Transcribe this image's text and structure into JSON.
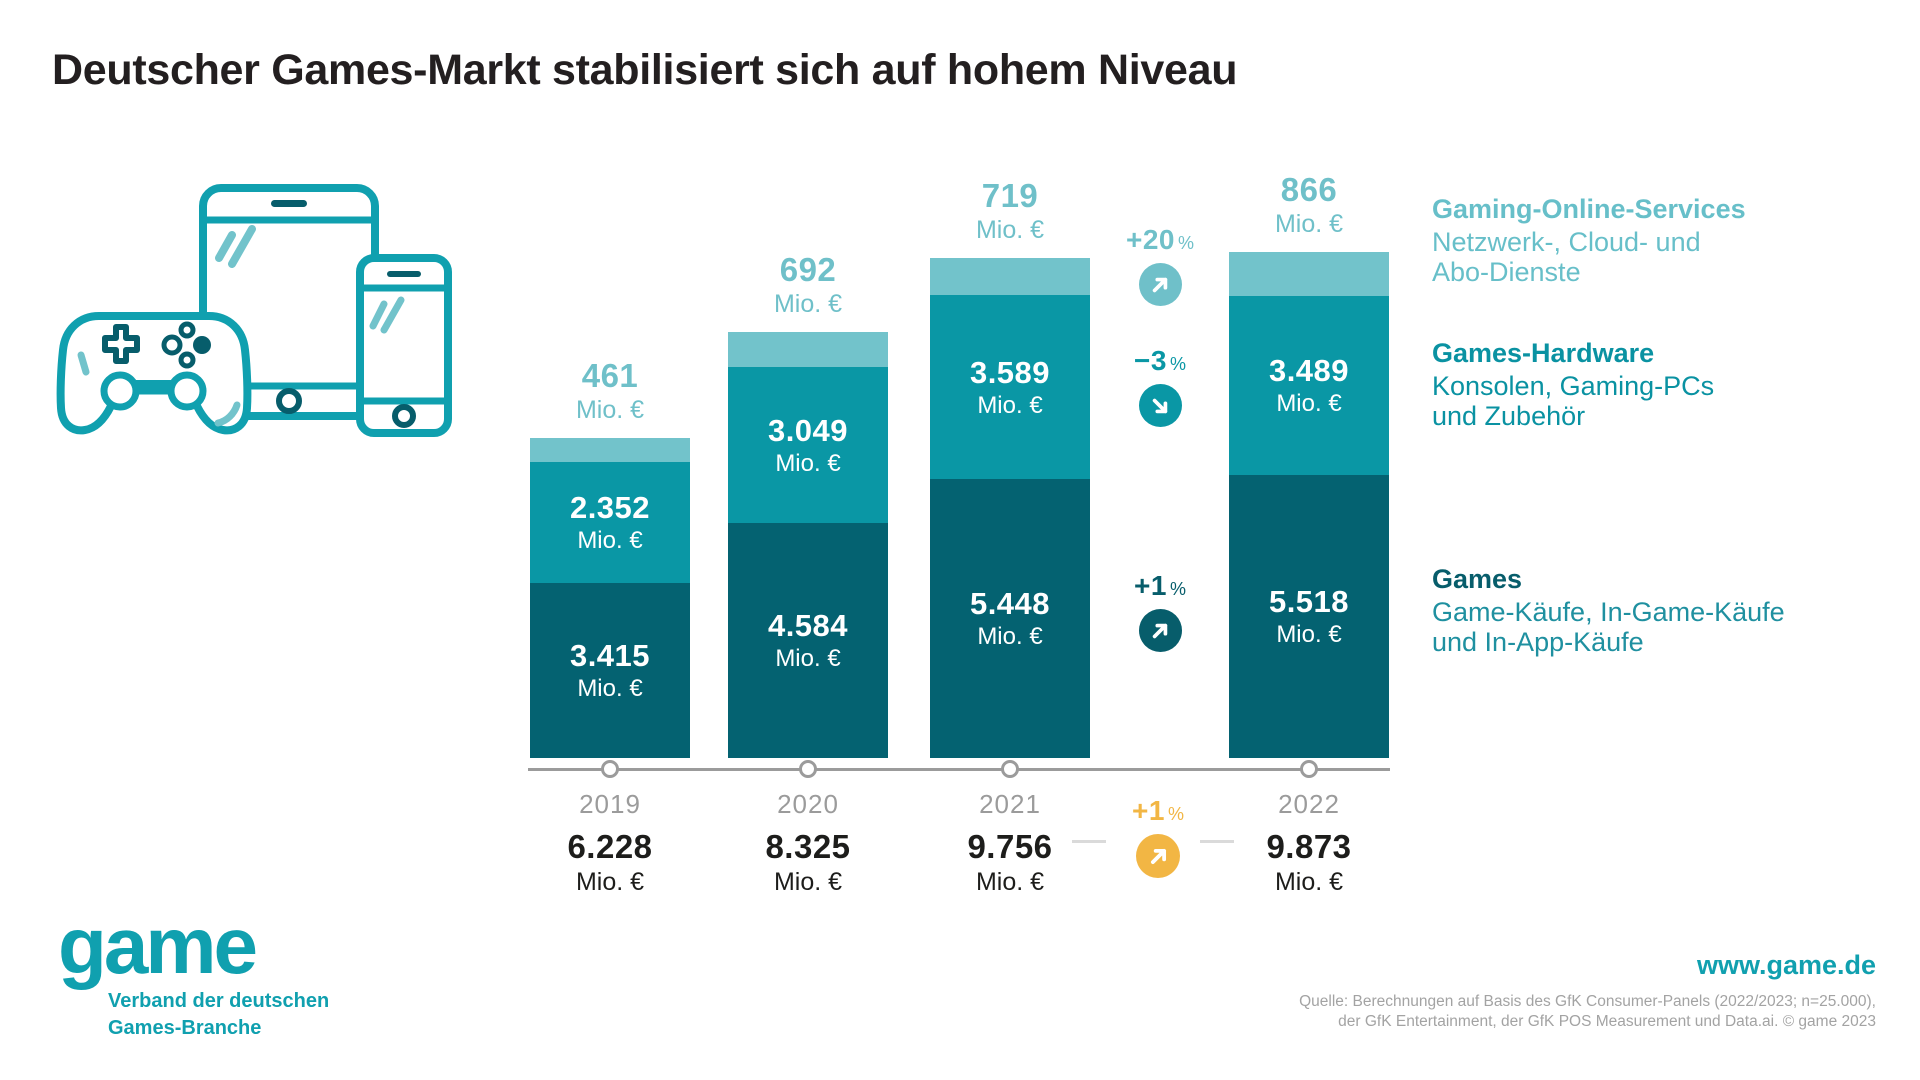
{
  "title": "Deutscher Games-Markt stabilisiert sich auf hohem Niveau",
  "chart_data": {
    "type": "bar",
    "stacked": true,
    "unit": "Mio. €",
    "categories": [
      "2019",
      "2020",
      "2021",
      "2022"
    ],
    "series": [
      {
        "name": "Games",
        "values": [
          3415,
          4584,
          5448,
          5518
        ],
        "labels": [
          "3.415",
          "4.584",
          "5.448",
          "5.518"
        ],
        "color": "#046271"
      },
      {
        "name": "Games-Hardware",
        "values": [
          2352,
          3049,
          3589,
          3489
        ],
        "labels": [
          "2.352",
          "3.049",
          "3.589",
          "3.489"
        ],
        "color": "#0a97a5"
      },
      {
        "name": "Gaming-Online-Services",
        "values": [
          461,
          692,
          719,
          866
        ],
        "labels": [
          "461",
          "692",
          "719",
          "866"
        ],
        "color": "#72c3cb"
      }
    ],
    "totals": {
      "values": [
        6228,
        8325,
        9756,
        9873
      ],
      "labels": [
        "6.228",
        "8.325",
        "9.756",
        "9.873"
      ]
    },
    "changes_2021_to_2022": [
      {
        "series": "Gaming-Online-Services",
        "value": "+20",
        "direction": "up"
      },
      {
        "series": "Games-Hardware",
        "value": "−3",
        "direction": "down"
      },
      {
        "series": "Games",
        "value": "+1",
        "direction": "up"
      },
      {
        "series": "Total",
        "value": "+1",
        "direction": "up"
      }
    ],
    "ylim": [
      0,
      9873
    ],
    "grid": false,
    "legend_position": "right"
  },
  "indicators": {
    "online": {
      "value": "+20",
      "unit": "%"
    },
    "hardware": {
      "value": "−3",
      "unit": "%"
    },
    "games": {
      "value": "+1",
      "unit": "%"
    },
    "total": {
      "value": "+1",
      "unit": "%"
    }
  },
  "legend": {
    "online": {
      "title": "Gaming-Online-Services",
      "desc1": "Netzwerk-, Cloud- und",
      "desc2": "Abo-Dienste"
    },
    "hardware": {
      "title": "Games-Hardware",
      "desc1": "Konsolen, Gaming-PCs",
      "desc2": "und Zubehör"
    },
    "games": {
      "title": "Games",
      "desc1": "Game-Käufe, In-Game-Käufe",
      "desc2": "und In-App-Käufe"
    }
  },
  "footer": {
    "logo_text": "game",
    "logo_tagline1": "Verband der deutschen",
    "logo_tagline2": "Games-Branche",
    "website": "www.game.de",
    "source1": "Quelle: Berechnungen auf Basis des GfK Consumer-Panels (2022/2023; n=25.000),",
    "source2": "der GfK Entertainment, der GfK POS Measurement und Data.ai. © game 2023"
  },
  "colors": {
    "games": "#046271",
    "hardware": "#0a97a5",
    "online": "#72c3cb",
    "accent_amber": "#f2b644",
    "axis_gray": "#9b9b9b",
    "text_dark": "#231f20",
    "brand_teal": "#10a0af"
  }
}
